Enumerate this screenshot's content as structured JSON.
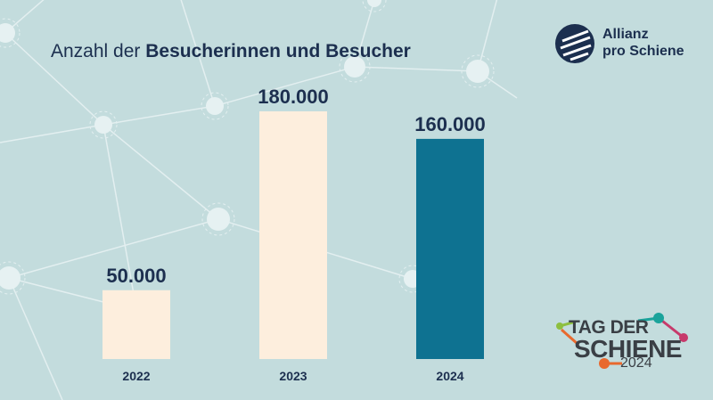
{
  "title": {
    "regular": "Anzahl der",
    "bold": "Besucherinnen und Besucher"
  },
  "logos": {
    "allianz": {
      "line1": "Allianz",
      "line2": "pro Schiene"
    },
    "tag_der_schiene": {
      "line1": "TAG DER",
      "line2": "SCHIENE",
      "line3": "2024"
    }
  },
  "colors": {
    "background": "#c3dcdd",
    "bar_light": "#fdeedd",
    "bar_dark": "#0e7291",
    "text_dark": "#1c2f4f"
  },
  "chart_data": {
    "type": "bar",
    "title": "Anzahl der Besucherinnen und Besucher",
    "categories": [
      "2022",
      "2023",
      "2024"
    ],
    "values": [
      50000,
      180000,
      160000
    ],
    "value_labels": [
      "50.000",
      "180.000",
      "160.000"
    ],
    "bar_colors": [
      "#fdeedd",
      "#fdeedd",
      "#0e7291"
    ],
    "ylim": [
      0,
      180000
    ],
    "grid": false,
    "legend": "none"
  }
}
